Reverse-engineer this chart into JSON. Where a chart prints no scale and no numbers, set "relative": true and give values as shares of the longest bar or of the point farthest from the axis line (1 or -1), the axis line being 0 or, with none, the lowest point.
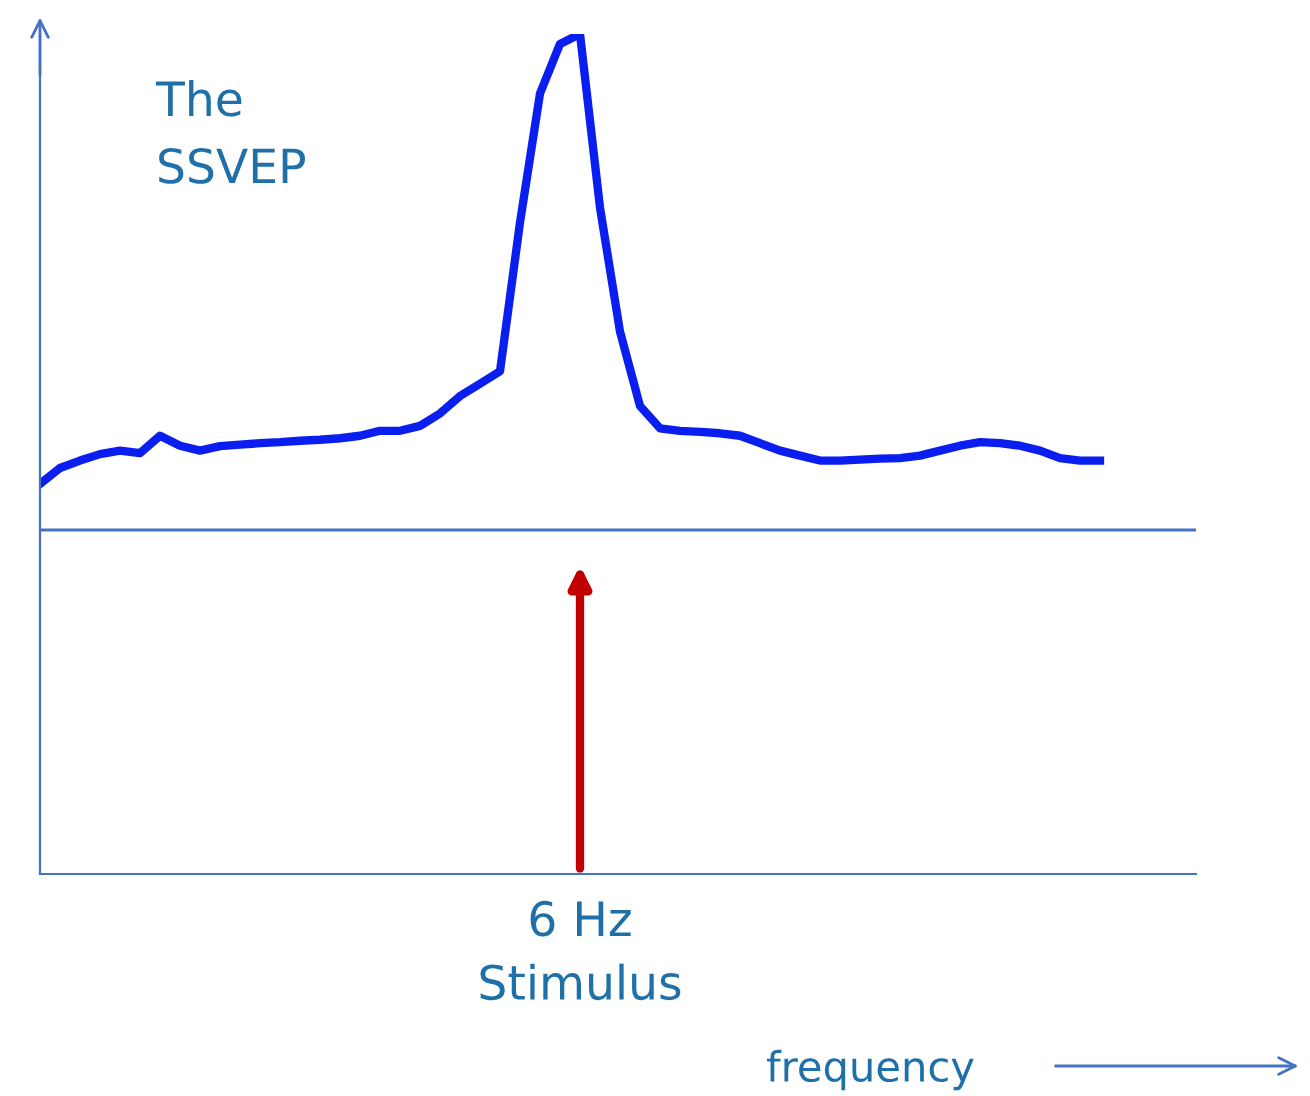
{
  "chart_data": {
    "type": "line",
    "relative": true,
    "title": "The\nSSVEP",
    "annotations": [
      "6 Hz\nStimulus",
      "frequency"
    ],
    "categories": [
      null,
      null,
      null,
      null,
      null,
      null,
      null,
      null,
      null,
      null,
      null,
      null,
      null,
      null,
      null,
      null,
      null,
      null,
      null,
      null,
      null,
      null,
      null,
      null,
      null,
      null,
      null,
      null,
      null,
      null,
      null,
      null,
      null,
      null,
      null,
      null,
      null,
      null,
      null,
      null,
      null,
      null,
      null,
      null,
      null,
      null,
      null,
      null,
      null,
      null,
      null,
      null,
      null,
      null
    ],
    "series": [
      {
        "color": "#0a1ef0",
        "values": [
          0.093,
          0.125,
          0.14,
          0.153,
          0.16,
          0.155,
          0.19,
          0.17,
          0.16,
          0.169,
          0.172,
          0.175,
          0.177,
          0.18,
          0.182,
          0.185,
          0.19,
          0.2,
          0.2,
          0.21,
          0.235,
          0.27,
          0.295,
          0.32,
          0.62,
          0.88,
          0.98,
          1.0,
          0.65,
          0.4,
          0.25,
          0.205,
          0.2,
          0.198,
          0.195,
          0.19,
          0.175,
          0.16,
          0.15,
          0.14,
          0.14,
          0.142,
          0.144,
          0.145,
          0.15,
          0.16,
          0.17,
          0.177,
          0.175,
          0.17,
          0.16,
          0.145,
          0.14,
          0.14
        ]
      }
    ],
    "legend": false,
    "marker": "none",
    "line_style": "solid"
  }
}
